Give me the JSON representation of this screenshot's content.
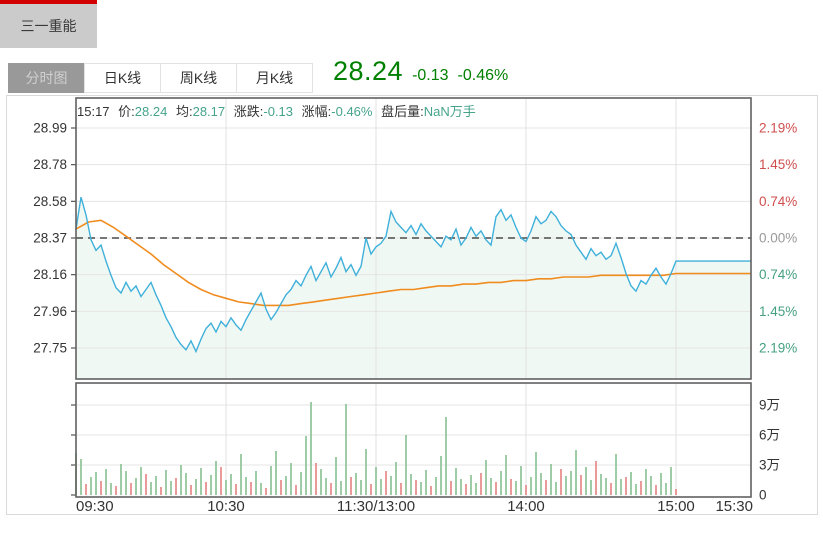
{
  "header": {
    "stock_name": "三一重能",
    "active_tab_color": "#d20000"
  },
  "tabs": {
    "selected": "分时图",
    "items": [
      {
        "label": "分时图"
      },
      {
        "label": "日K线"
      },
      {
        "label": "周K线"
      },
      {
        "label": "月K线"
      }
    ]
  },
  "price_summary": {
    "last": "28.24",
    "change": "-0.13",
    "change_pct": "-0.46%",
    "color": "#008000"
  },
  "info_line": {
    "time": "15:17",
    "price_label": "价:",
    "price": "28.24",
    "avg_label": "均:",
    "avg": "28.17",
    "change_label": "涨跌:",
    "change": "-0.13",
    "pct_label": "涨幅:",
    "pct": "-0.46%",
    "after_volume_label": "盘后量:",
    "after_volume": "NaN万手"
  },
  "chart_data": {
    "type": "line",
    "title": "三一重能 分时图",
    "colors": {
      "up": "#cf4e4e",
      "down": "#45a080",
      "flat": "#999999",
      "value_teal": "#46a38c"
    },
    "x_axis": {
      "labels": [
        "09:30",
        "10:30",
        "11:30/13:00",
        "14:00",
        "15:00",
        "15:30"
      ],
      "minutes": [
        0,
        60,
        120,
        180,
        240,
        270
      ],
      "total_minutes": 270,
      "session_minutes": 240,
      "gridline_minutes": [
        60,
        120,
        180,
        240
      ]
    },
    "price_axis": {
      "left_labels": [
        "28.99",
        "28.78",
        "28.58",
        "28.37",
        "28.16",
        "27.96",
        "27.75"
      ],
      "right_labels": [
        {
          "text": "2.19%",
          "tone": "up"
        },
        {
          "text": "1.45%",
          "tone": "up"
        },
        {
          "text": "0.74%",
          "tone": "up"
        },
        {
          "text": "0.00%",
          "tone": "flat"
        },
        {
          "text": "0.74%",
          "tone": "down"
        },
        {
          "text": "1.45%",
          "tone": "down"
        },
        {
          "text": "2.19%",
          "tone": "down"
        }
      ],
      "top_value": 28.99,
      "bottom_value": 27.75,
      "prev_close": 28.37
    },
    "volume_axis": {
      "labels": [
        "9万",
        "6万",
        "3万",
        "0"
      ],
      "values": [
        9,
        6,
        3,
        0
      ],
      "unit": "万"
    },
    "area_fill": "rgba(110,184,144,0.10)",
    "grid": true,
    "zero_line_dashed": true,
    "series": {
      "price": {
        "name": "价",
        "color": "#3fb0da",
        "step_minutes": 2,
        "flat_to_minute": 270,
        "values": [
          28.42,
          28.6,
          28.5,
          28.36,
          28.3,
          28.33,
          28.24,
          28.16,
          28.09,
          28.06,
          28.12,
          28.07,
          28.1,
          28.04,
          28.08,
          28.12,
          28.05,
          27.99,
          27.92,
          27.87,
          27.81,
          27.77,
          27.74,
          27.79,
          27.73,
          27.8,
          27.86,
          27.89,
          27.84,
          27.9,
          27.87,
          27.92,
          27.88,
          27.85,
          27.91,
          27.96,
          28.01,
          28.06,
          27.97,
          27.91,
          27.95,
          28.0,
          28.05,
          28.08,
          28.13,
          28.1,
          28.16,
          28.21,
          28.13,
          28.18,
          28.23,
          28.15,
          28.2,
          28.26,
          28.18,
          28.22,
          28.16,
          28.21,
          28.37,
          28.28,
          28.32,
          28.34,
          28.38,
          28.52,
          28.46,
          28.43,
          28.4,
          28.44,
          28.39,
          28.45,
          28.41,
          28.38,
          28.35,
          28.32,
          28.38,
          28.36,
          28.42,
          28.33,
          28.37,
          28.43,
          28.38,
          28.41,
          28.36,
          28.33,
          28.49,
          28.53,
          28.47,
          28.5,
          28.43,
          28.37,
          28.35,
          28.41,
          28.49,
          28.45,
          28.47,
          28.52,
          28.49,
          28.44,
          28.41,
          28.39,
          28.33,
          28.29,
          28.25,
          28.31,
          28.27,
          28.29,
          28.25,
          28.27,
          28.34,
          28.26,
          28.17,
          28.1,
          28.07,
          28.13,
          28.11,
          28.16,
          28.2,
          28.15,
          28.11,
          28.17,
          28.24
        ]
      },
      "avg": {
        "name": "均",
        "color": "#f08c1e",
        "step_minutes": 5,
        "flat_to_minute": 270,
        "values": [
          28.42,
          28.46,
          28.47,
          28.43,
          28.38,
          28.33,
          28.28,
          28.22,
          28.17,
          28.12,
          28.08,
          28.05,
          28.03,
          28.01,
          28.0,
          27.99,
          27.99,
          27.99,
          28.0,
          28.01,
          28.02,
          28.03,
          28.04,
          28.05,
          28.06,
          28.07,
          28.08,
          28.08,
          28.09,
          28.1,
          28.1,
          28.11,
          28.11,
          28.12,
          28.12,
          28.13,
          28.13,
          28.14,
          28.14,
          28.15,
          28.15,
          28.15,
          28.16,
          28.16,
          28.16,
          28.16,
          28.16,
          28.16,
          28.17
        ]
      }
    },
    "volume_bars": {
      "step_minutes": 2,
      "unit": "万",
      "positive_color": "#94c79c",
      "negative_color": "#e98f8f",
      "values": [
        4.2,
        3.6,
        -1.1,
        1.8,
        2.3,
        -1.4,
        2.6,
        1.2,
        -0.9,
        3.1,
        2.4,
        -1.2,
        1.7,
        2.8,
        -2.1,
        1.3,
        1.9,
        -0.8,
        2.5,
        1.4,
        -1.7,
        3.0,
        2.2,
        -1.0,
        1.6,
        2.7,
        -1.3,
        2.0,
        3.4,
        -2.8,
        1.5,
        2.1,
        -1.1,
        4.1,
        1.8,
        -1.3,
        2.4,
        1.2,
        -0.7,
        2.9,
        4.4,
        -1.5,
        1.9,
        3.2,
        -1.0,
        2.3,
        5.9,
        9.3,
        -3.2,
        2.6,
        1.7,
        -1.2,
        3.8,
        1.4,
        9.1,
        -1.8,
        2.2,
        1.5,
        4.6,
        -1.1,
        2.8,
        1.6,
        -2.4,
        1.9,
        3.3,
        -1.2,
        6.0,
        2.1,
        -1.5,
        1.3,
        2.5,
        -0.9,
        1.8,
        3.9,
        7.8,
        -1.4,
        2.7,
        1.6,
        -1.1,
        2.0,
        1.2,
        -2.2,
        3.5,
        1.7,
        -1.3,
        2.4,
        4.0,
        -1.6,
        1.4,
        2.9,
        -1.0,
        1.8,
        4.3,
        2.2,
        -1.5,
        3.1,
        1.3,
        -2.6,
        1.9,
        2.4,
        4.5,
        -2.0,
        2.8,
        1.5,
        -3.4,
        2.1,
        1.7,
        -1.2,
        4.1,
        1.6,
        -1.8,
        2.3,
        1.1,
        -1.4,
        2.6,
        1.9,
        -1.0,
        2.2,
        1.2,
        2.8,
        -0.6
      ]
    }
  }
}
